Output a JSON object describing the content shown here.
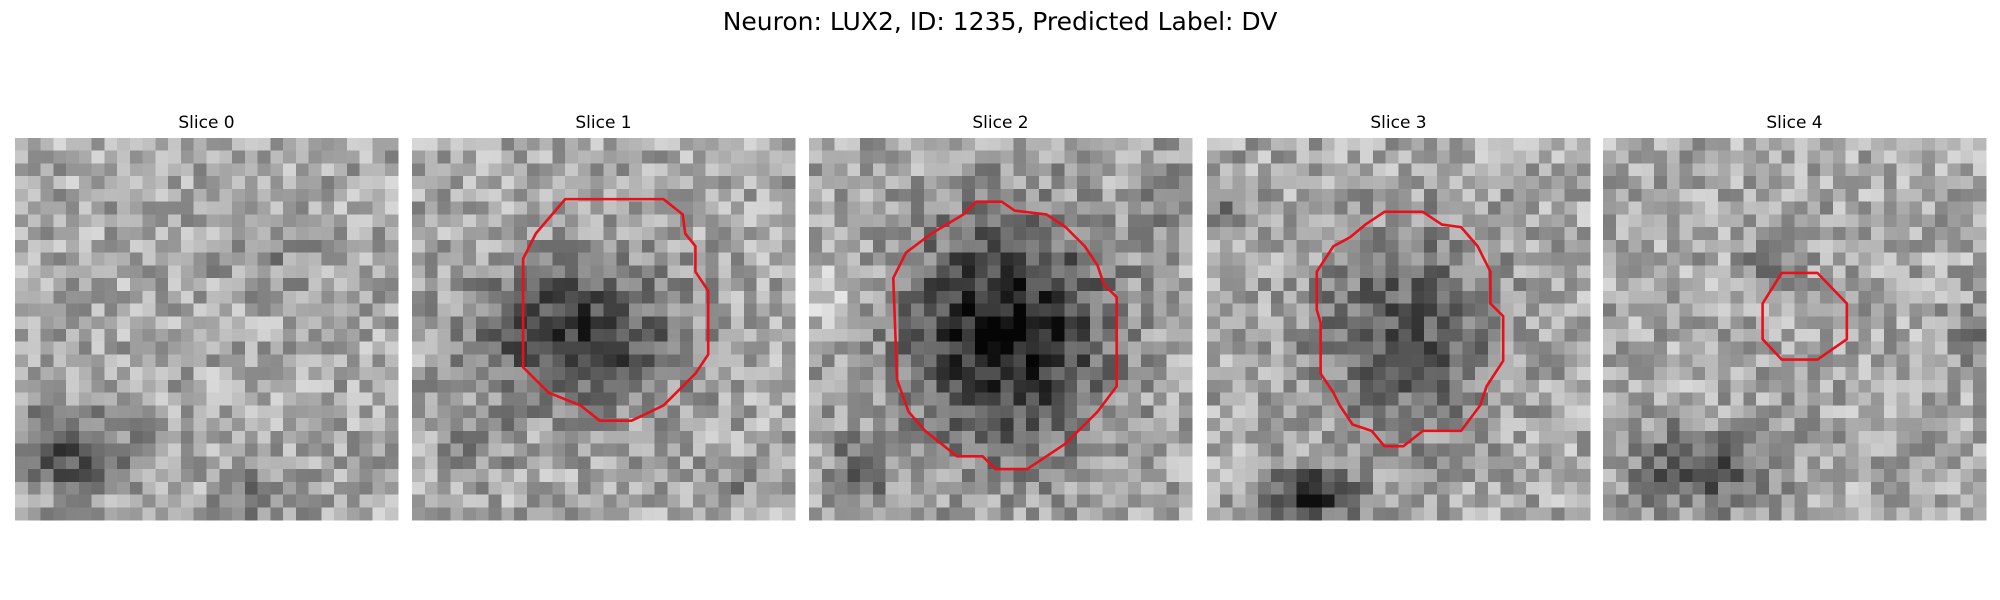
{
  "title": "Neuron: LUX2, ID: 1235, Predicted Label: DV",
  "panels": [
    {
      "title": "Slice 0"
    },
    {
      "title": "Slice 1"
    },
    {
      "title": "Slice 2"
    },
    {
      "title": "Slice 3"
    },
    {
      "title": "Slice 4"
    }
  ]
}
